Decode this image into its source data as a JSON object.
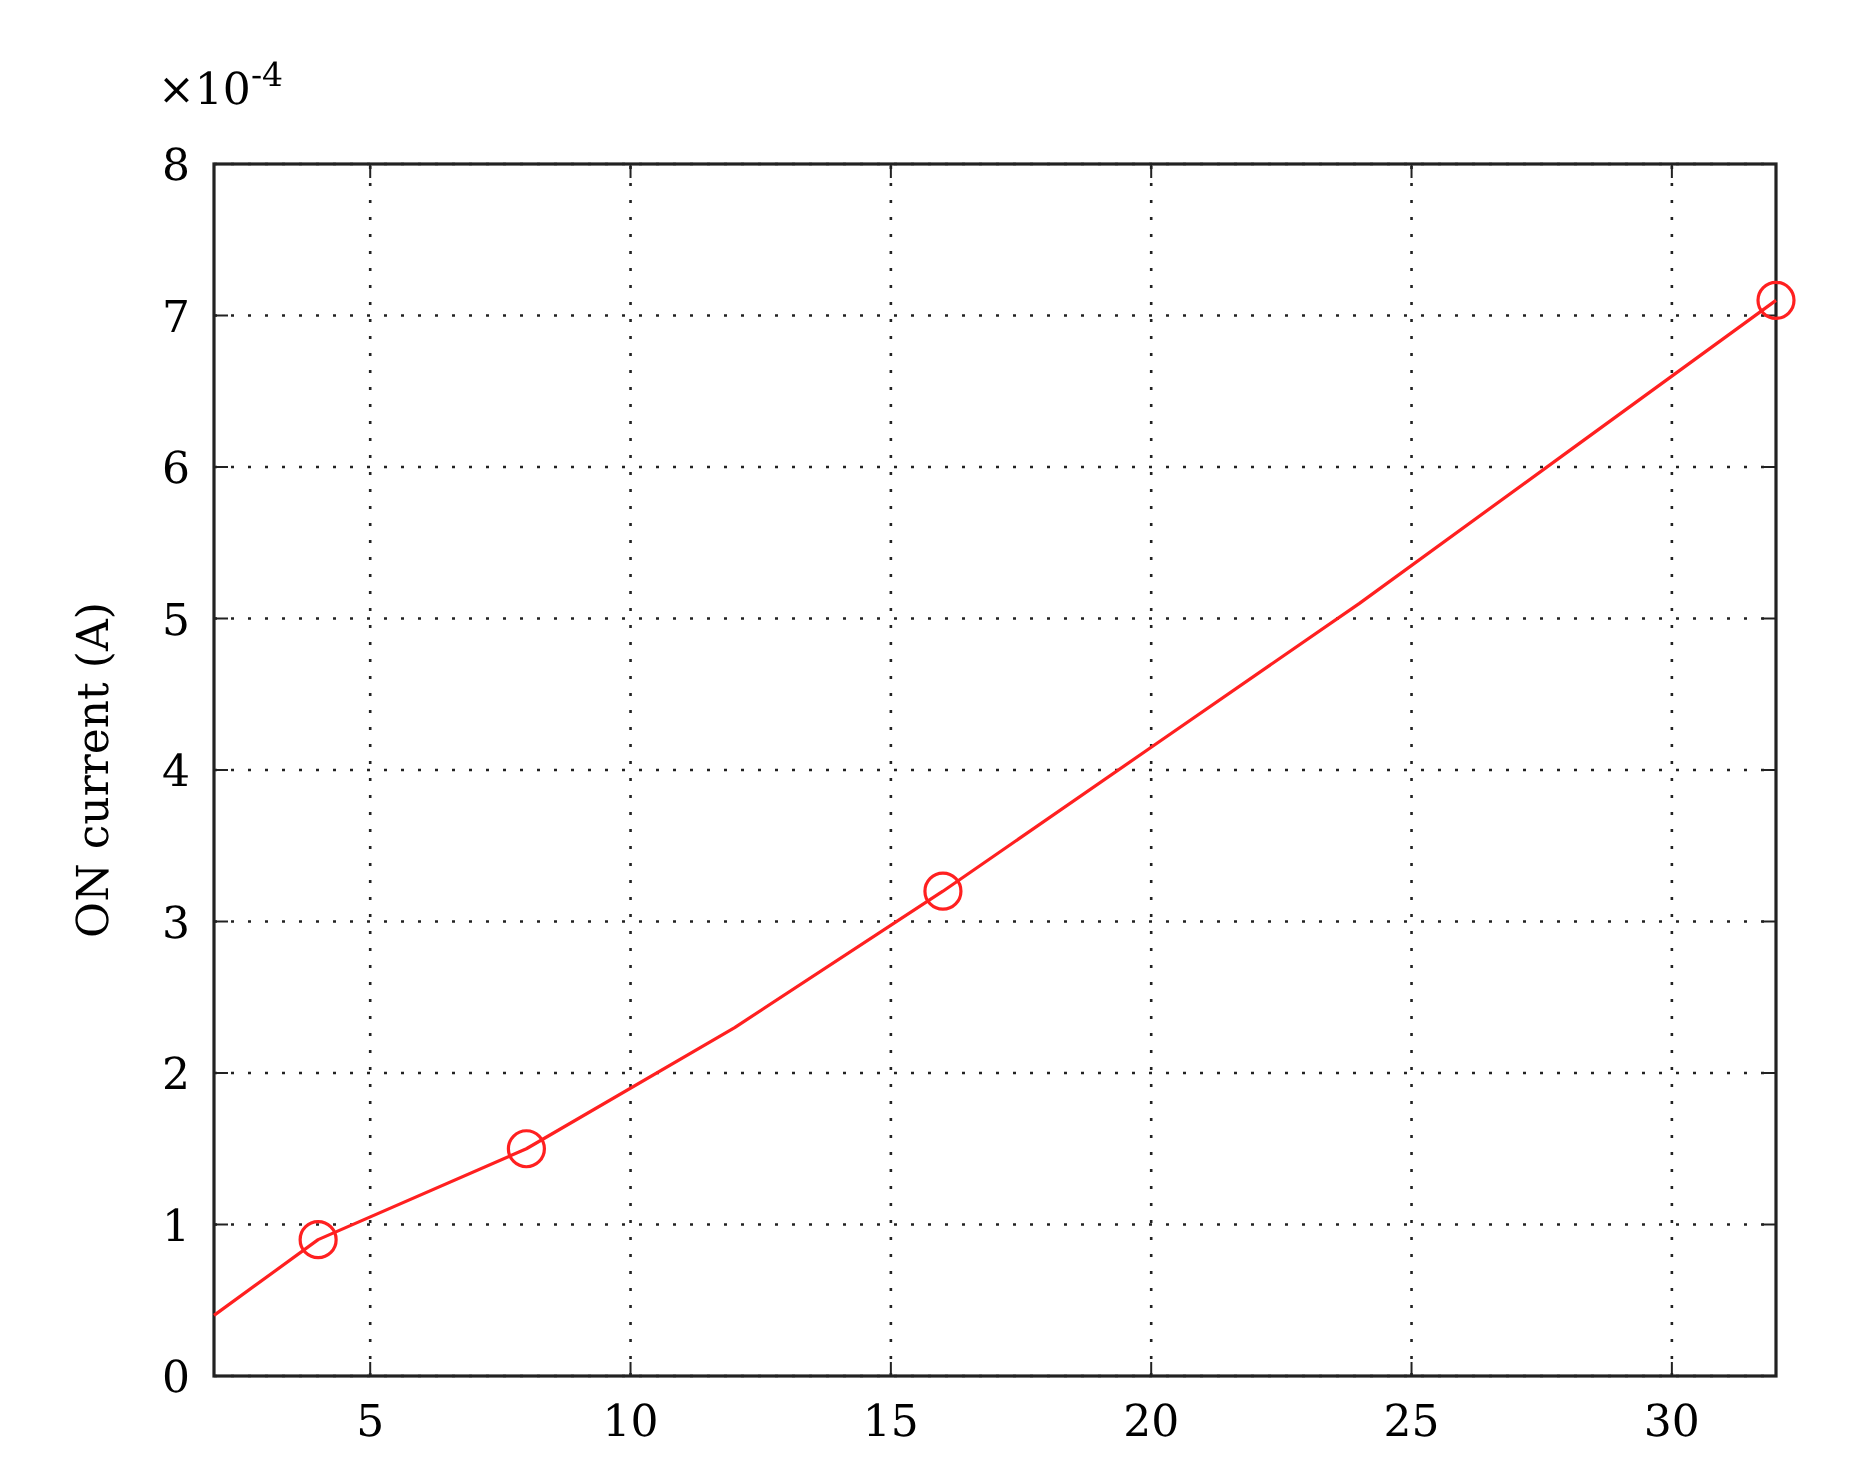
{
  "chart_data": {
    "type": "line",
    "ylabel": "ON current (A)",
    "annotations": [
      "×10$^{-4}$"
    ],
    "xlim": [
      2,
      32
    ],
    "xticks": [
      5,
      10,
      15,
      20,
      25,
      30
    ],
    "ylim": [
      0,
      8
    ],
    "yticks": [
      0,
      1,
      2,
      3,
      4,
      5,
      6,
      7,
      8
    ],
    "grid": true,
    "line_style": "solid",
    "series": [
      {
        "marker": "none",
        "color": "#ff2020",
        "x": [
          2,
          4,
          8,
          12,
          16,
          20,
          24,
          28,
          32
        ],
        "values": [
          0.4,
          0.9,
          1.5,
          2.3,
          3.2,
          4.15,
          5.1,
          6.1,
          7.1
        ]
      },
      {
        "type": "scatter",
        "marker": "circle",
        "color": "#ff2020",
        "x": [
          4,
          8,
          16,
          32
        ],
        "values": [
          0.9,
          1.5,
          3.2,
          7.1
        ]
      }
    ]
  }
}
